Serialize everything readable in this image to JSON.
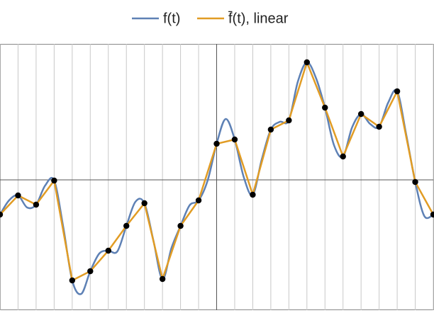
{
  "chart_data": {
    "type": "line",
    "xlim": [
      -12,
      12
    ],
    "ylim": [
      -3.68,
      3.84
    ],
    "x_grid": [
      -12,
      -11,
      -10,
      -9,
      -8,
      -7,
      -6,
      -5,
      -4,
      -3,
      -2,
      -1,
      0,
      1,
      2,
      3,
      4,
      5,
      6,
      7,
      8,
      9,
      10,
      11,
      12
    ],
    "series": [
      {
        "name": "f(t)",
        "color": "#5e81b5",
        "smooth": true,
        "x": [
          -12,
          -11.5,
          -11,
          -10.5,
          -10,
          -9.5,
          -9,
          -8.5,
          -8,
          -7.5,
          -7,
          -6.5,
          -6,
          -5.5,
          -5,
          -4.5,
          -4,
          -3.5,
          -3,
          -2.5,
          -2,
          -1.5,
          -1,
          -0.5,
          0,
          0.5,
          1,
          1.5,
          2,
          2.5,
          3,
          3.5,
          4,
          4.5,
          5,
          5.5,
          6,
          6.5,
          7,
          7.5,
          8,
          8.5,
          9,
          9.5,
          10,
          10.5,
          11,
          11.5,
          12
        ],
        "values": [
          -0.98,
          -0.58,
          -0.44,
          -0.78,
          -0.7,
          -0.16,
          -0.02,
          -1.32,
          -2.84,
          -3.22,
          -2.58,
          -2.08,
          -2.0,
          -2.02,
          -1.3,
          -0.62,
          -0.66,
          -1.72,
          -2.8,
          -1.92,
          -1.3,
          -0.72,
          -0.58,
          -0.02,
          1.02,
          1.72,
          1.14,
          0.08,
          -0.42,
          0.58,
          1.42,
          1.64,
          1.68,
          2.78,
          3.32,
          2.88,
          2.04,
          0.98,
          0.66,
          1.48,
          1.86,
          1.58,
          1.5,
          2.18,
          2.5,
          1.28,
          -0.06,
          -1.02,
          -0.98
        ]
      },
      {
        "name": "f̄(t), linear",
        "color": "#e19c24",
        "smooth": false,
        "markers": "#000000",
        "x": [
          -12,
          -11,
          -10,
          -9,
          -8,
          -7,
          -6,
          -5,
          -4,
          -3,
          -2,
          -1,
          0,
          1,
          2,
          3,
          4,
          5,
          6,
          7,
          8,
          9,
          10,
          11,
          12
        ],
        "values": [
          -0.98,
          -0.44,
          -0.7,
          -0.02,
          -2.84,
          -2.58,
          -2.0,
          -1.3,
          -0.66,
          -2.8,
          -1.3,
          -0.58,
          1.02,
          1.14,
          -0.42,
          1.42,
          1.68,
          3.32,
          2.04,
          0.66,
          1.86,
          1.5,
          2.5,
          -0.06,
          -0.98
        ]
      }
    ]
  }
}
